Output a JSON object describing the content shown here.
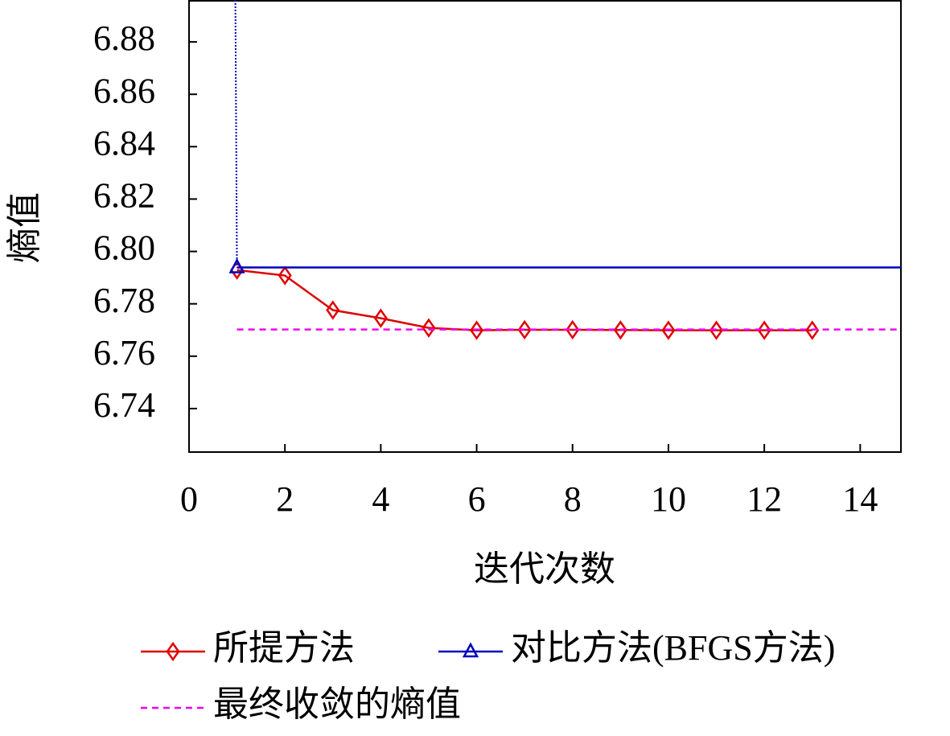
{
  "chart_data": {
    "type": "line",
    "x_label": "迭代次数",
    "y_label": "熵值",
    "xlim": [
      0,
      14.85
    ],
    "ylim": [
      6.7234,
      6.896
    ],
    "xticks": [
      0,
      2,
      4,
      6,
      8,
      10,
      12,
      14
    ],
    "yticks": [
      6.74,
      6.76,
      6.78,
      {
        "value": 6.8,
        "label": "6.80"
      },
      6.82,
      6.84,
      6.86,
      6.88
    ],
    "series": [
      {
        "name": "所提方法",
        "color": "#e00000",
        "marker": "diamond",
        "dash": "solid",
        "x": [
          1,
          2,
          3,
          4,
          5,
          6,
          7,
          8,
          9,
          10,
          11,
          12,
          13
        ],
        "values": [
          6.7929,
          6.7908,
          6.7776,
          6.7745,
          6.7708,
          6.7699,
          6.7701,
          6.7701,
          6.77,
          6.7699,
          6.7699,
          6.7699,
          6.7699
        ]
      },
      {
        "name": "对比方法(BFGS方法)",
        "color": "#0000c0",
        "marker": "triangle",
        "dash": "solid",
        "x": [
          1,
          14.85
        ],
        "values": [
          6.7939,
          6.7939
        ]
      },
      {
        "name": "最终收敛的熵值",
        "color": "#ee00ee",
        "marker": "none",
        "dash": "dashed",
        "x": [
          1,
          14.85
        ],
        "values": [
          6.7702,
          6.7702
        ]
      }
    ]
  }
}
